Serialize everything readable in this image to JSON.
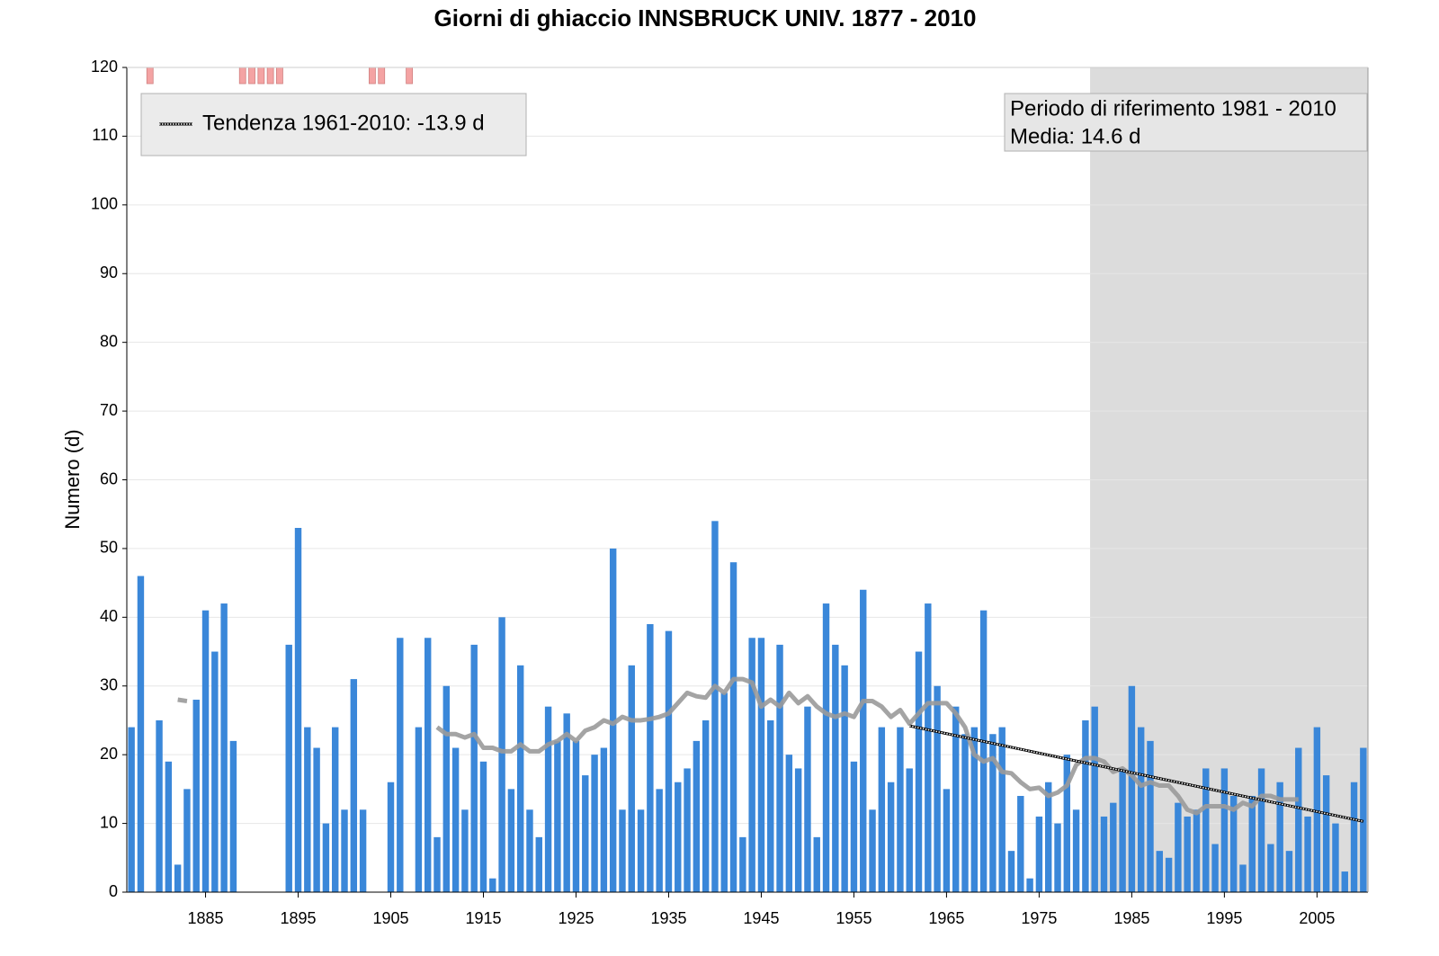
{
  "chart_data": {
    "type": "bar",
    "title": "Giorni di ghiaccio INNSBRUCK UNIV. 1877 - 2010",
    "y_label": "Numero (d)",
    "x": [
      1877,
      1878,
      1879,
      1880,
      1881,
      1882,
      1883,
      1884,
      1885,
      1886,
      1887,
      1888,
      1889,
      1890,
      1891,
      1892,
      1893,
      1894,
      1895,
      1896,
      1897,
      1898,
      1899,
      1900,
      1901,
      1902,
      1903,
      1904,
      1905,
      1906,
      1907,
      1908,
      1909,
      1910,
      1911,
      1912,
      1913,
      1914,
      1915,
      1916,
      1917,
      1918,
      1919,
      1920,
      1921,
      1922,
      1923,
      1924,
      1925,
      1926,
      1927,
      1928,
      1929,
      1930,
      1931,
      1932,
      1933,
      1934,
      1935,
      1936,
      1937,
      1938,
      1939,
      1940,
      1941,
      1942,
      1943,
      1944,
      1945,
      1946,
      1947,
      1948,
      1949,
      1950,
      1951,
      1952,
      1953,
      1954,
      1955,
      1956,
      1957,
      1958,
      1959,
      1960,
      1961,
      1962,
      1963,
      1964,
      1965,
      1966,
      1967,
      1968,
      1969,
      1970,
      1971,
      1972,
      1973,
      1974,
      1975,
      1976,
      1977,
      1978,
      1979,
      1980,
      1981,
      1982,
      1983,
      1984,
      1985,
      1986,
      1987,
      1988,
      1989,
      1990,
      1991,
      1992,
      1993,
      1994,
      1995,
      1996,
      1997,
      1998,
      1999,
      2000,
      2001,
      2002,
      2003,
      2004,
      2005,
      2006,
      2007,
      2008,
      2009,
      2010
    ],
    "values": [
      24,
      46,
      null,
      25,
      19,
      4,
      15,
      28,
      41,
      35,
      42,
      22,
      null,
      null,
      null,
      null,
      null,
      36,
      53,
      24,
      21,
      10,
      24,
      12,
      31,
      12,
      null,
      null,
      16,
      37,
      null,
      24,
      37,
      8,
      30,
      21,
      12,
      36,
      19,
      2,
      40,
      15,
      33,
      12,
      8,
      27,
      22,
      26,
      22,
      17,
      20,
      21,
      50,
      12,
      33,
      12,
      39,
      15,
      38,
      16,
      18,
      22,
      25,
      54,
      29,
      48,
      8,
      37,
      37,
      25,
      36,
      20,
      18,
      27,
      8,
      42,
      36,
      33,
      19,
      44,
      12,
      24,
      16,
      24,
      18,
      35,
      42,
      30,
      15,
      27,
      23,
      24,
      41,
      23,
      24,
      6,
      14,
      2,
      11,
      16,
      10,
      20,
      12,
      25,
      27,
      11,
      13,
      18,
      30,
      24,
      22,
      6,
      5,
      13,
      11,
      12,
      18,
      7,
      18,
      14,
      4,
      14,
      18,
      7,
      16,
      6,
      21,
      11,
      24,
      17,
      10,
      3,
      16,
      21
    ],
    "color": "#3a87d9",
    "missing_color": "#f4a3a3",
    "moving_average": {
      "color": "#9a9a9a",
      "values": [
        null,
        null,
        null,
        null,
        null,
        28,
        27.8,
        null,
        null,
        null,
        null,
        null,
        null,
        null,
        null,
        null,
        null,
        null,
        null,
        null,
        null,
        null,
        null,
        null,
        null,
        null,
        null,
        null,
        null,
        null,
        null,
        null,
        null,
        24,
        23,
        23,
        22.5,
        23,
        21,
        21,
        20.5,
        20.5,
        21.5,
        20.5,
        20.5,
        21.5,
        22,
        23,
        22,
        23.5,
        24,
        25,
        24.5,
        25.5,
        25,
        25,
        25.2,
        25.5,
        26,
        27.5,
        29,
        28.5,
        28.3,
        30,
        29,
        31,
        31,
        30.5,
        27,
        28,
        27,
        29,
        27.5,
        28.5,
        27,
        26,
        25.5,
        26,
        25.5,
        27.8,
        27.8,
        27,
        25.5,
        26.5,
        24.5,
        26,
        27.5,
        27.5,
        27.5,
        26,
        24,
        20,
        19,
        19.5,
        17.5,
        17.3,
        16,
        15,
        15.2,
        14,
        14.5,
        15.5,
        18.5,
        19.5,
        19.5,
        19,
        17.5,
        18,
        17,
        15.5,
        16,
        15.5,
        15.5,
        14,
        12,
        11.5,
        12.5,
        12.5,
        12.5,
        12,
        13,
        12.5,
        14,
        14,
        13.5,
        13.5,
        13.5,
        null,
        null,
        null,
        null,
        null,
        null
      ]
    },
    "trend": {
      "label": "Tendenza 1961-2010: -13.9 d",
      "x": [
        1961,
        2010
      ],
      "values": [
        24.2,
        10.3
      ]
    },
    "reference_period": {
      "range": [
        1981,
        2010
      ],
      "lines": [
        "Periodo di riferimento 1981 - 2010",
        "Media: 14.6 d"
      ],
      "color": "#dcdcdc"
    },
    "xlim": [
      1876.5,
      2010.5
    ],
    "xticks": [
      1885,
      1895,
      1905,
      1915,
      1925,
      1935,
      1945,
      1955,
      1965,
      1975,
      1985,
      1995,
      2005
    ],
    "ylim": [
      0,
      120
    ],
    "yticks": [
      0,
      10,
      20,
      30,
      40,
      50,
      60,
      70,
      80,
      90,
      100,
      110,
      120
    ],
    "grid": true
  }
}
